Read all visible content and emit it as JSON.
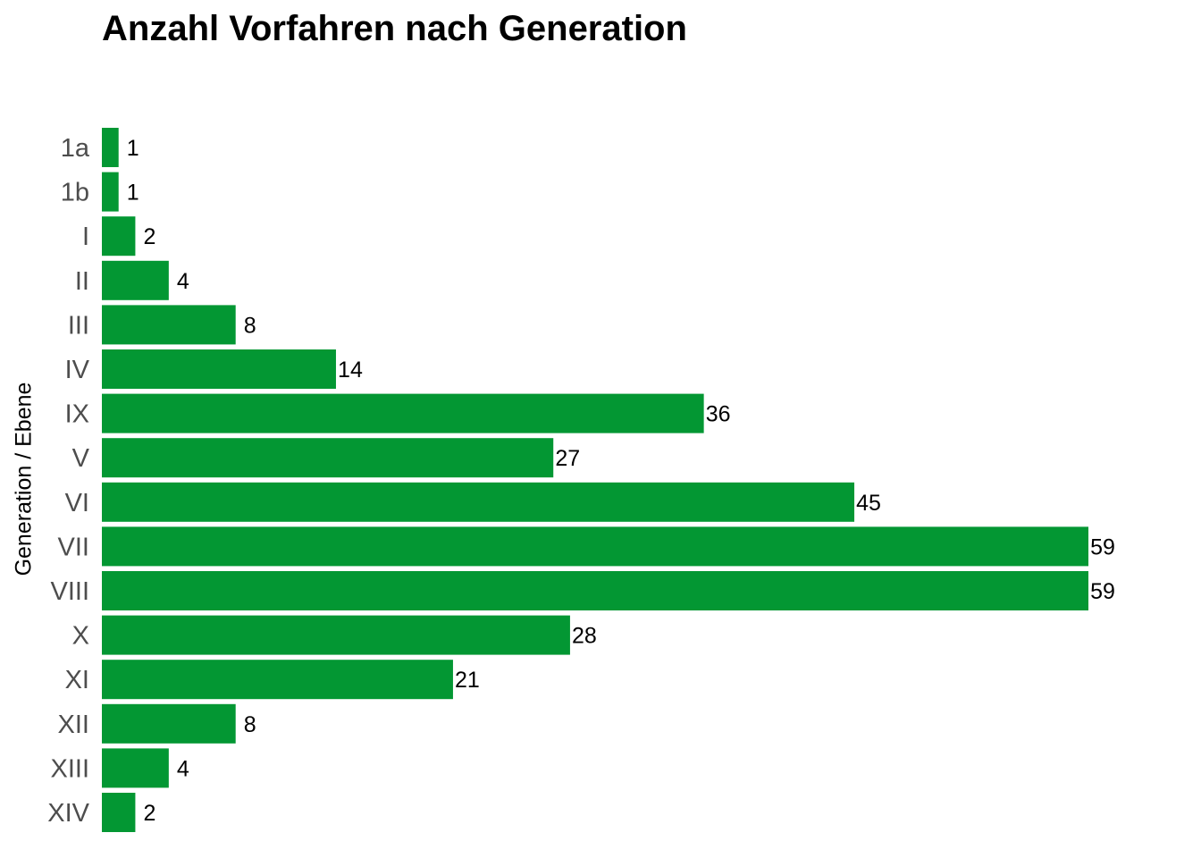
{
  "chart_data": {
    "type": "bar",
    "orientation": "horizontal",
    "title": "Anzahl Vorfahren nach Generation",
    "xlabel": "",
    "ylabel": "Generation / Ebene",
    "categories": [
      "1a",
      "1b",
      "I",
      "II",
      "III",
      "IV",
      "IX",
      "V",
      "VI",
      "VII",
      "VIII",
      "X",
      "XI",
      "XII",
      "XIII",
      "XIV"
    ],
    "values": [
      1,
      1,
      2,
      4,
      8,
      14,
      36,
      27,
      45,
      59,
      59,
      28,
      21,
      8,
      4,
      2
    ],
    "xlim": [
      0,
      59
    ],
    "bar_color": "#039733",
    "grid": false,
    "legend": "none",
    "data_labels": true
  }
}
